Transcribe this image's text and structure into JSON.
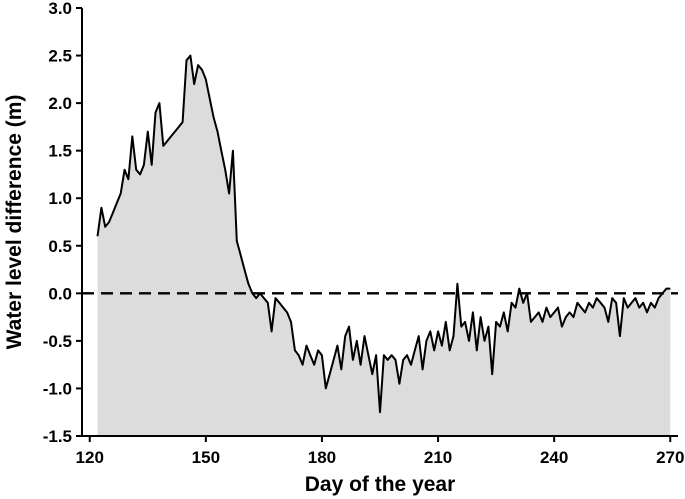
{
  "chart_data": {
    "type": "area",
    "xlabel": "Day of the year",
    "ylabel": "Water level difference (m)",
    "xlim": [
      118,
      272
    ],
    "ylim": [
      -1.5,
      3.0
    ],
    "xticks": [
      120,
      150,
      180,
      210,
      240,
      270
    ],
    "yticks": [
      -1.5,
      -1.0,
      -0.5,
      0.0,
      0.5,
      1.0,
      1.5,
      2.0,
      2.5,
      3.0
    ],
    "ytick_labels": [
      "-1.5",
      "-1.0",
      "-0.5",
      "0.0",
      "0.5",
      "1.0",
      "1.5",
      "2.0",
      "2.5",
      "3.0"
    ],
    "reference_line": {
      "y": 0.0,
      "style": "dashed"
    },
    "colors": {
      "fill": "#dcdcdc",
      "line": "#000000",
      "axis": "#000000"
    },
    "series": [
      {
        "x": [
          122,
          123,
          124,
          125,
          126,
          127,
          128,
          129,
          130,
          131,
          132,
          133,
          134,
          135,
          136,
          137,
          138,
          139,
          140,
          141,
          142,
          143,
          144,
          145,
          146,
          147,
          148,
          149,
          150,
          151,
          152,
          153,
          154,
          155,
          156,
          157,
          158,
          159,
          160,
          161,
          162,
          163,
          164,
          165,
          166,
          167,
          168,
          169,
          170,
          171,
          172,
          173,
          174,
          175,
          176,
          177,
          178,
          179,
          180,
          181,
          182,
          183,
          184,
          185,
          186,
          187,
          188,
          189,
          190,
          191,
          192,
          193,
          194,
          195,
          196,
          197,
          198,
          199,
          200,
          201,
          202,
          203,
          204,
          205,
          206,
          207,
          208,
          209,
          210,
          211,
          212,
          213,
          214,
          215,
          216,
          217,
          218,
          219,
          220,
          221,
          222,
          223,
          224,
          225,
          226,
          227,
          228,
          229,
          230,
          231,
          232,
          233,
          234,
          235,
          236,
          237,
          238,
          239,
          240,
          241,
          242,
          243,
          244,
          245,
          246,
          247,
          248,
          249,
          250,
          251,
          252,
          253,
          254,
          255,
          256,
          257,
          258,
          259,
          260,
          261,
          262,
          263,
          264,
          265,
          266,
          267,
          268,
          269,
          270
        ],
        "y": [
          0.6,
          0.9,
          0.7,
          0.75,
          0.85,
          0.95,
          1.05,
          1.3,
          1.2,
          1.65,
          1.3,
          1.25,
          1.35,
          1.7,
          1.35,
          1.9,
          2.0,
          1.55,
          1.6,
          1.65,
          1.7,
          1.75,
          1.8,
          2.45,
          2.5,
          2.2,
          2.4,
          2.35,
          2.25,
          2.05,
          1.85,
          1.7,
          1.5,
          1.3,
          1.05,
          1.5,
          0.55,
          0.4,
          0.25,
          0.1,
          0.0,
          -0.05,
          0.0,
          -0.05,
          -0.1,
          -0.4,
          -0.05,
          -0.1,
          -0.15,
          -0.2,
          -0.3,
          -0.6,
          -0.65,
          -0.75,
          -0.55,
          -0.65,
          -0.75,
          -0.6,
          -0.65,
          -1.0,
          -0.85,
          -0.7,
          -0.55,
          -0.8,
          -0.45,
          -0.35,
          -0.7,
          -0.5,
          -0.75,
          -0.45,
          -0.65,
          -0.85,
          -0.65,
          -1.25,
          -0.65,
          -0.7,
          -0.65,
          -0.7,
          -0.95,
          -0.7,
          -0.65,
          -0.75,
          -0.6,
          -0.45,
          -0.8,
          -0.5,
          -0.4,
          -0.6,
          -0.4,
          -0.55,
          -0.3,
          -0.6,
          -0.45,
          0.1,
          -0.35,
          -0.3,
          -0.5,
          -0.2,
          -0.6,
          -0.25,
          -0.5,
          -0.35,
          -0.85,
          -0.3,
          -0.35,
          -0.2,
          -0.4,
          -0.1,
          -0.15,
          0.05,
          -0.1,
          0.0,
          -0.3,
          -0.25,
          -0.2,
          -0.3,
          -0.15,
          -0.25,
          -0.2,
          -0.15,
          -0.35,
          -0.25,
          -0.2,
          -0.25,
          -0.1,
          -0.15,
          -0.2,
          -0.1,
          -0.15,
          -0.05,
          -0.1,
          -0.15,
          -0.3,
          -0.05,
          -0.1,
          -0.45,
          -0.05,
          -0.15,
          -0.1,
          -0.05,
          -0.15,
          -0.1,
          -0.2,
          -0.1,
          -0.15,
          -0.05,
          0.0,
          0.05,
          0.05
        ]
      }
    ],
    "grid": false,
    "legend": "none"
  }
}
